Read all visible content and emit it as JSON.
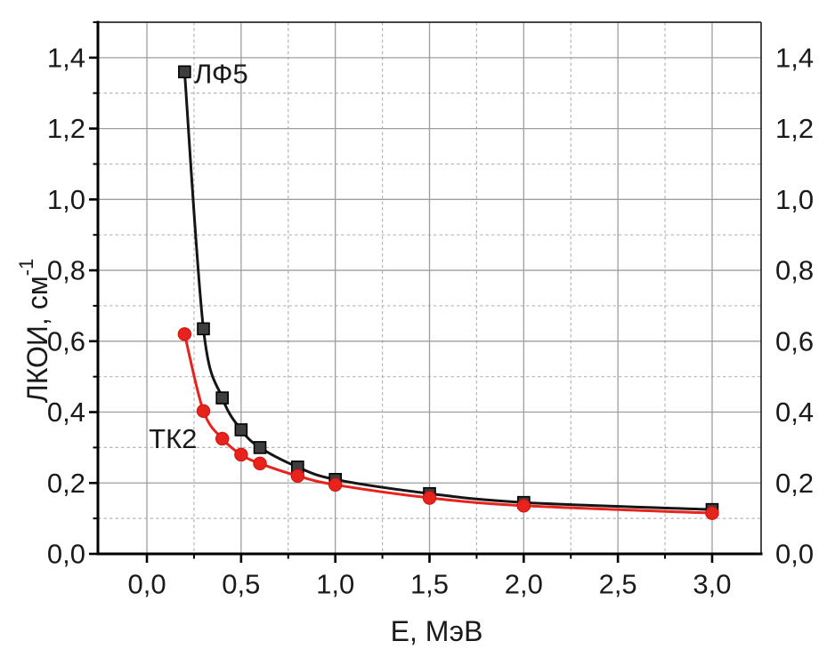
{
  "chart_data": {
    "type": "line",
    "title": "",
    "xlabel": "E, МэВ",
    "ylabel": "ЛКОИ, см⁻¹",
    "ylabel_text": "ЛКОИ, см",
    "ylabel_superscript": "-1",
    "x": [
      0.2,
      0.3,
      0.4,
      0.5,
      0.6,
      0.8,
      1.0,
      1.5,
      2.0,
      3.0
    ],
    "series": [
      {
        "name": "ЛФ5",
        "values": [
          1.36,
          0.635,
          0.44,
          0.35,
          0.3,
          0.245,
          0.21,
          0.17,
          0.145,
          0.125
        ],
        "line_color": "#151515",
        "marker": "square",
        "marker_fill": "#3e3e3e",
        "marker_stroke": "#000000",
        "label": {
          "text": "ЛФ5",
          "x": 0.25,
          "y": 1.355
        }
      },
      {
        "name": "ТК2",
        "values": [
          0.62,
          0.403,
          0.325,
          0.28,
          0.255,
          0.22,
          0.195,
          0.158,
          0.136,
          0.115
        ],
        "line_color": "#e8221c",
        "marker": "circle",
        "marker_fill": "#e8221c",
        "marker_stroke": "#c91410",
        "label": {
          "text": "ТК2",
          "x": 0.01,
          "y": 0.325
        }
      }
    ],
    "xlim": [
      -0.26,
      3.26
    ],
    "ylim": [
      0,
      1.5
    ],
    "x_major_ticks": [
      0,
      0.5,
      1.0,
      1.5,
      2.0,
      2.5,
      3.0
    ],
    "x_major_labels": [
      "0,0",
      "0,5",
      "1,0",
      "1,5",
      "2,0",
      "2,5",
      "3,0"
    ],
    "x_minor_ticks": [
      0.25,
      0.75,
      1.25,
      1.75,
      2.25,
      2.75
    ],
    "y_major_ticks": [
      0,
      0.2,
      0.4,
      0.6,
      0.8,
      1.0,
      1.2,
      1.4
    ],
    "y_major_labels": [
      "0,0",
      "0,2",
      "0,4",
      "0,6",
      "0,8",
      "1,0",
      "1,2",
      "1,4"
    ],
    "y_minor_ticks": [
      0.1,
      0.3,
      0.5,
      0.7,
      0.9,
      1.1,
      1.3,
      1.5
    ],
    "legend_position": "inline-labels",
    "grid": {
      "major_on": true,
      "minor_on": true,
      "major_color": "#9e9e9e",
      "minor_color": "#b6b6b6",
      "minor_dash": "3.5 3"
    },
    "colors": {
      "background": "#ffffff",
      "axis": "#000000",
      "frame": "#2b2b2b",
      "text": "#1a1a1a",
      "accent_red": "#e8221c",
      "accent_dark": "#3e3e3e"
    }
  }
}
